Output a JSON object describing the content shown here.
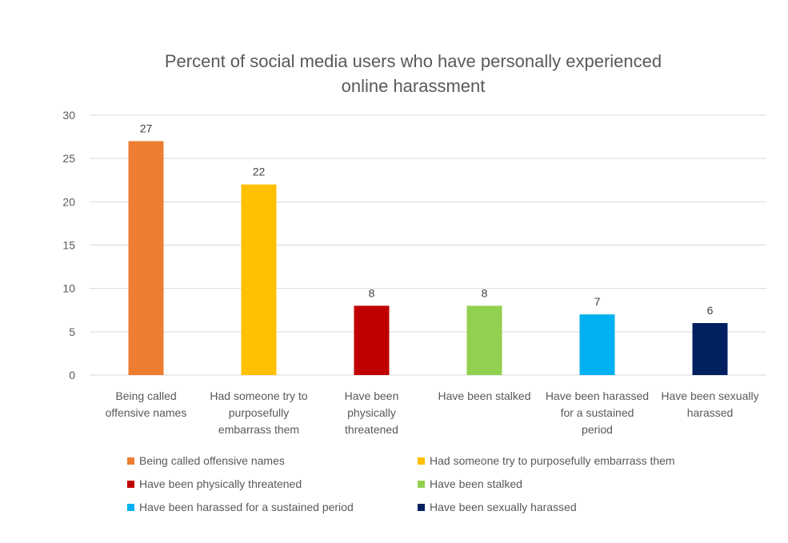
{
  "chart_data": {
    "type": "bar",
    "title": [
      "Percent of social media users who have personally experienced",
      "online harassment"
    ],
    "categories": [
      [
        "Being called",
        "offensive names"
      ],
      [
        "Had someone try to",
        "purposefully",
        "embarrass them"
      ],
      [
        "Have been",
        "physically",
        "threatened"
      ],
      [
        "Have been stalked"
      ],
      [
        "Have been harassed",
        "for a sustained",
        "period"
      ],
      [
        "Have been sexually",
        "harassed"
      ]
    ],
    "values": [
      27,
      22,
      8,
      8,
      7,
      6
    ],
    "data_labels": [
      "27",
      "22",
      "8",
      "8",
      "7",
      "6"
    ],
    "colors": [
      "#ED7D31",
      "#FFC000",
      "#C00000",
      "#92D050",
      "#00B0F0",
      "#002060"
    ],
    "ylim": [
      0,
      30
    ],
    "yticks": [
      "0",
      "5",
      "10",
      "15",
      "20",
      "25",
      "30"
    ],
    "grid": true,
    "legend_position": "bottom",
    "legend": [
      "Being called offensive names",
      "Had someone try to purposefully embarrass them",
      "Have been physically threatened",
      "Have been stalked",
      "Have been harassed for a sustained period",
      "Have been sexually harassed"
    ]
  }
}
